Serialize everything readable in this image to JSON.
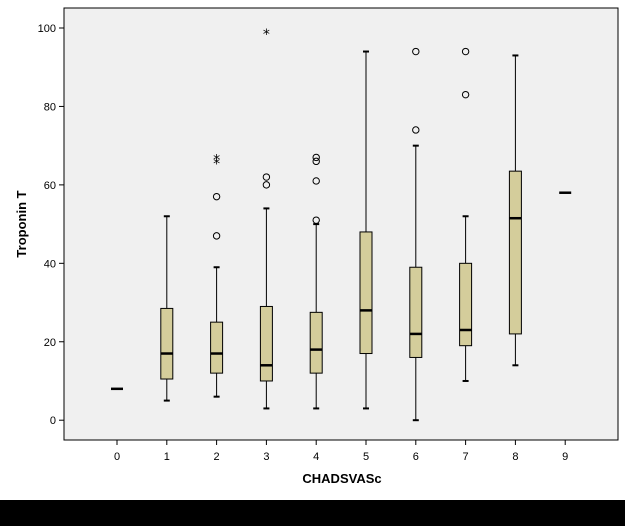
{
  "chart_data": {
    "type": "boxplot",
    "xlabel": "CHADSVASc",
    "ylabel": "Troponin T",
    "ylim": [
      -5,
      105
    ],
    "yticks": [
      0,
      20,
      40,
      60,
      80,
      100
    ],
    "categories": [
      "0",
      "1",
      "2",
      "3",
      "4",
      "5",
      "6",
      "7",
      "8",
      "9"
    ],
    "boxes": [
      {
        "category": "0",
        "min": 8,
        "q1": 8,
        "median": 8,
        "q3": 8,
        "max": 8,
        "outliers": [],
        "extremes": []
      },
      {
        "category": "1",
        "min": 5,
        "q1": 10.5,
        "median": 17,
        "q3": 28.5,
        "max": 52,
        "outliers": [],
        "extremes": []
      },
      {
        "category": "2",
        "min": 6,
        "q1": 12,
        "median": 17,
        "q3": 25,
        "max": 39,
        "outliers": [
          47,
          57
        ],
        "extremes": [
          66,
          67
        ]
      },
      {
        "category": "3",
        "min": 3,
        "q1": 10,
        "median": 14,
        "q3": 29,
        "max": 54,
        "outliers": [
          60,
          62
        ],
        "extremes": [
          99
        ]
      },
      {
        "category": "4",
        "min": 3,
        "q1": 12,
        "median": 18,
        "q3": 27.5,
        "max": 50,
        "outliers": [
          51,
          61,
          66,
          67
        ],
        "extremes": []
      },
      {
        "category": "5",
        "min": 3,
        "q1": 17,
        "median": 28,
        "q3": 48,
        "max": 94,
        "outliers": [],
        "extremes": []
      },
      {
        "category": "6",
        "min": 0,
        "q1": 16,
        "median": 22,
        "q3": 39,
        "max": 70,
        "outliers": [
          74,
          94
        ],
        "extremes": []
      },
      {
        "category": "7",
        "min": 10,
        "q1": 19,
        "median": 23,
        "q3": 40,
        "max": 52,
        "outliers": [
          83,
          94
        ],
        "extremes": []
      },
      {
        "category": "8",
        "min": 14,
        "q1": 22,
        "median": 51.5,
        "q3": 63.5,
        "max": 93,
        "outliers": [],
        "extremes": []
      },
      {
        "category": "9",
        "min": 58,
        "q1": 58,
        "median": 58,
        "q3": 58,
        "max": 58,
        "outliers": [],
        "extremes": []
      }
    ],
    "grid": false,
    "legend": "none",
    "colors": {
      "box_fill": "#d4cd9b",
      "plot_background": "#f0f0f0",
      "line": "#000000",
      "frame": "#000000"
    }
  }
}
